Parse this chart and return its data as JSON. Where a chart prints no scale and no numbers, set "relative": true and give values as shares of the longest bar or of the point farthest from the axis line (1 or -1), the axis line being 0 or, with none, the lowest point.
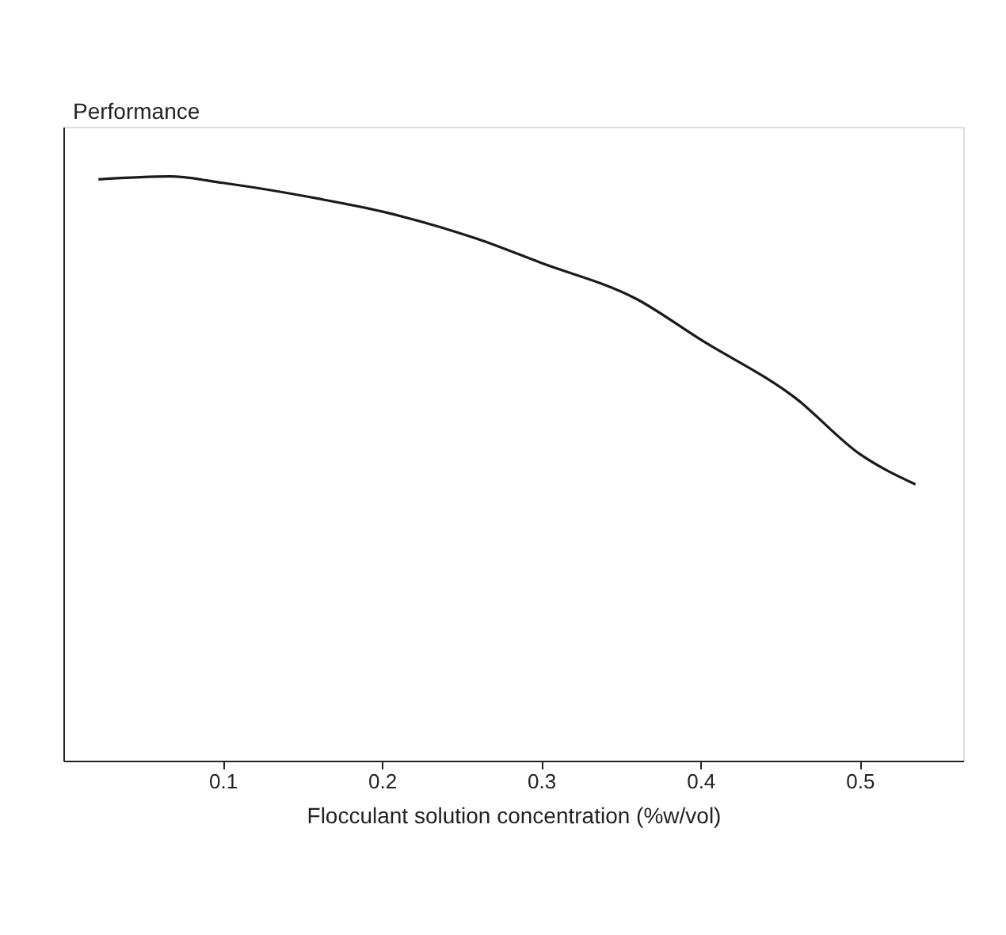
{
  "chart_data": {
    "type": "line",
    "relative": true,
    "ylabel": "Performance",
    "xlabel": "Flocculant solution concentration (%w/vol)",
    "x": [
      0.022,
      0.067,
      0.1,
      0.16,
      0.2,
      0.26,
      0.3,
      0.36,
      0.4,
      0.46,
      0.5,
      0.535
    ],
    "series": [
      {
        "color": "#1a1a1a",
        "values": [
          0.995,
          1,
          0.989,
          0.962,
          0.94,
          0.893,
          0.852,
          0.79,
          0.721,
          0.62,
          0.525,
          0.473
        ]
      }
    ],
    "xlim": [
      0,
      0.565
    ],
    "xticks": [
      0.1,
      0.2,
      0.3,
      0.4,
      0.5
    ],
    "tick_labels": "x",
    "grid": false,
    "marker": "none",
    "line_style": "solid"
  }
}
